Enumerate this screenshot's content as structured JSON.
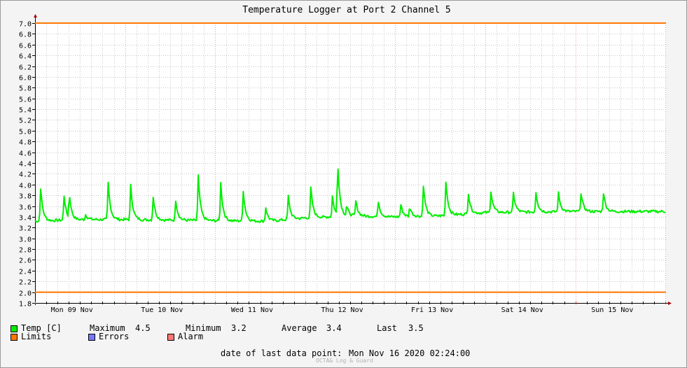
{
  "chart_data": {
    "type": "line",
    "title": "Temperature Logger at Port 2 Channel 5",
    "xlabel": "",
    "ylabel": "",
    "ylim": [
      1.8,
      7.0
    ],
    "y_ticks": [
      "1.8",
      "2.0",
      "2.2",
      "2.4",
      "2.6",
      "2.8",
      "3.0",
      "3.2",
      "3.4",
      "3.6",
      "3.8",
      "4.0",
      "4.2",
      "4.4",
      "4.6",
      "4.8",
      "5.0",
      "5.2",
      "5.4",
      "5.6",
      "5.8",
      "6.0",
      "6.2",
      "6.4",
      "6.6",
      "6.8",
      "7.0"
    ],
    "x_categories": [
      "Mon 09 Nov",
      "Tue 10 Nov",
      "Wed 11 Nov",
      "Thu 12 Nov",
      "Fri 13 Nov",
      "Sat 14 Nov",
      "Sun 15 Nov"
    ],
    "grid": true,
    "limits": {
      "upper": 7.0,
      "lower": 2.0
    },
    "series": [
      {
        "name": "Temp [C]",
        "color": "#00ee00",
        "baseline": [
          [
            0.0,
            3.32
          ],
          [
            0.5,
            3.35
          ],
          [
            1.0,
            3.35
          ],
          [
            2.0,
            3.33
          ],
          [
            2.6,
            3.32
          ],
          [
            3.0,
            3.38
          ],
          [
            3.5,
            3.42
          ],
          [
            4.0,
            3.4
          ],
          [
            4.5,
            3.42
          ],
          [
            5.0,
            3.48
          ],
          [
            6.0,
            3.5
          ],
          [
            7.0,
            3.5
          ],
          [
            7.1,
            3.48
          ]
        ],
        "spikes": [
          [
            0.06,
            4.0
          ],
          [
            0.32,
            3.85
          ],
          [
            0.38,
            3.82
          ],
          [
            0.56,
            3.45
          ],
          [
            0.81,
            4.1
          ],
          [
            1.06,
            4.05
          ],
          [
            1.31,
            3.82
          ],
          [
            1.56,
            3.75
          ],
          [
            1.81,
            4.25
          ],
          [
            2.06,
            4.1
          ],
          [
            2.31,
            3.95
          ],
          [
            2.56,
            3.6
          ],
          [
            2.81,
            3.83
          ],
          [
            3.06,
            4.0
          ],
          [
            3.3,
            3.82
          ],
          [
            3.36,
            4.45
          ],
          [
            3.46,
            3.6
          ],
          [
            3.56,
            3.72
          ],
          [
            3.81,
            3.72
          ],
          [
            4.06,
            3.65
          ],
          [
            4.16,
            3.6
          ],
          [
            4.31,
            4.05
          ],
          [
            4.56,
            4.13
          ],
          [
            4.81,
            3.88
          ],
          [
            5.06,
            3.92
          ],
          [
            5.31,
            3.88
          ],
          [
            5.56,
            3.9
          ],
          [
            5.81,
            3.88
          ],
          [
            6.06,
            3.88
          ],
          [
            6.31,
            3.88
          ]
        ],
        "maximum": "4.5",
        "minimum": "3.2",
        "average": "3.4",
        "last": "3.5"
      }
    ]
  },
  "legend": {
    "temp_label": "Temp [C]",
    "maximum_label": "Maximum",
    "maximum_value": "4.5",
    "minimum_label": "Minimum",
    "minimum_value": "3.2",
    "average_label": "Average",
    "average_value": "3.4",
    "last_label": "Last",
    "last_value": "3.5",
    "limits_label": "Limits",
    "errors_label": "Errors",
    "alarm_label": "Alarm"
  },
  "colors": {
    "temp": "#00ee00",
    "limits": "#ff7700",
    "errors": "#7777ff",
    "alarm": "#ff7777",
    "grid_major": "#e8a0a0",
    "grid_minor": "#c8c8c8"
  },
  "footer": {
    "last_point_label": "date of last data point:",
    "last_point_value": "Mon Nov 16 2020 02:24:00",
    "credit": "OCTA& Log & Guard"
  }
}
